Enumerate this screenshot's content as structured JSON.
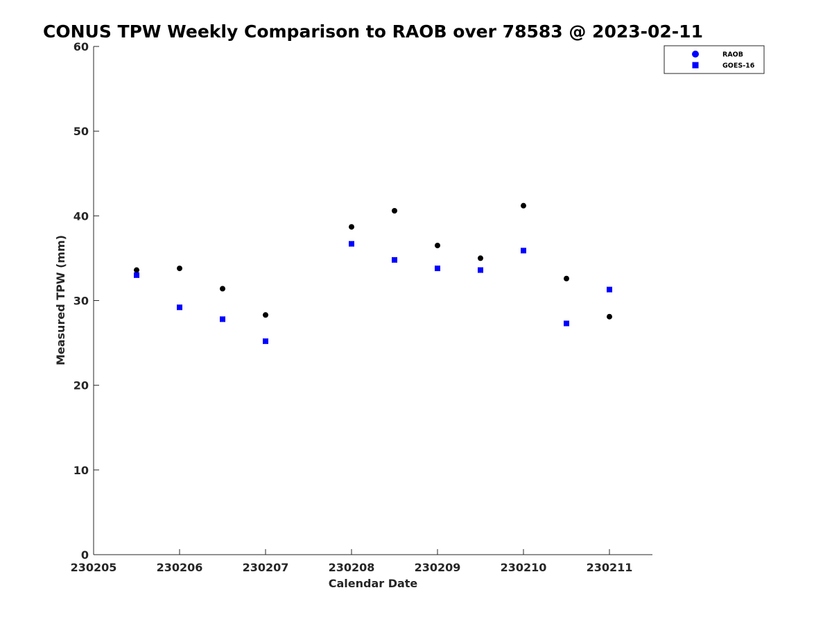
{
  "chart_data": {
    "type": "scatter",
    "title": "CONUS TPW Weekly Comparison to RAOB over 78583 @ 2023-02-11",
    "xlabel": "Calendar Date",
    "ylabel": "Measured TPW (mm)",
    "xlim": [
      230205,
      230211.5
    ],
    "ylim": [
      0,
      60
    ],
    "xticks": [
      230205,
      230206,
      230207,
      230208,
      230209,
      230210,
      230211
    ],
    "xtick_labels": [
      "230205",
      "230206",
      "230207",
      "230208",
      "230209",
      "230210",
      "230211"
    ],
    "yticks": [
      0,
      10,
      20,
      30,
      40,
      50,
      60
    ],
    "ytick_labels": [
      "0",
      "10",
      "20",
      "30",
      "40",
      "50",
      "60"
    ],
    "grid": false,
    "legend_position": "top-right",
    "series": [
      {
        "name": "RAOB",
        "marker": "circle",
        "color": "#000000",
        "legend_color": "#0000ff",
        "x": [
          230205.5,
          230206,
          230206.5,
          230207,
          230208,
          230208.5,
          230209,
          230209.5,
          230210,
          230210.5,
          230211
        ],
        "y": [
          33.6,
          33.8,
          31.4,
          28.3,
          38.7,
          40.6,
          36.5,
          35.0,
          41.2,
          32.6,
          28.1
        ]
      },
      {
        "name": "GOES-16",
        "marker": "square",
        "color": "#0000ff",
        "legend_color": "#0000ff",
        "x": [
          230205.5,
          230206,
          230206.5,
          230207,
          230208,
          230208.5,
          230209,
          230209.5,
          230210,
          230210.5,
          230211
        ],
        "y": [
          33.0,
          29.2,
          27.8,
          25.2,
          36.7,
          34.8,
          33.8,
          33.6,
          35.9,
          27.3,
          31.3
        ]
      }
    ]
  }
}
